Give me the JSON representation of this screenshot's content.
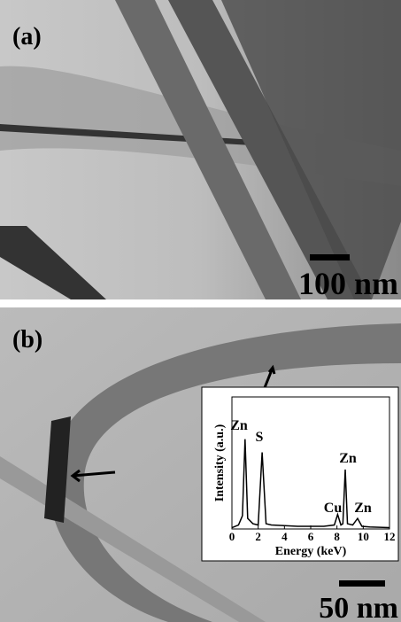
{
  "panels": [
    {
      "label": "(a)",
      "scale_bar": "100 nm"
    },
    {
      "label": "(b)",
      "scale_bar": "50 nm"
    }
  ],
  "chart_data": {
    "type": "line",
    "xlabel": "Energy (keV)",
    "ylabel": "Intensity (a.u.)",
    "x": [
      0,
      0.5,
      0.8,
      1.0,
      1.2,
      1.6,
      2.0,
      2.3,
      2.6,
      3,
      4,
      5,
      6,
      7,
      7.8,
      8.05,
      8.3,
      8.45,
      8.63,
      8.8,
      9.2,
      9.57,
      9.9,
      10.5,
      12
    ],
    "values": [
      1,
      3,
      10,
      68,
      8,
      4,
      3,
      58,
      4,
      3,
      2.5,
      2,
      2,
      2,
      3,
      11,
      3,
      4,
      45,
      4,
      3,
      8,
      2,
      1.5,
      1
    ],
    "color": "#000000",
    "xlim": [
      0,
      12
    ],
    "xticks": [
      0,
      2,
      4,
      6,
      8,
      10,
      12
    ],
    "ylim": [
      0,
      100
    ],
    "annotations": [
      "Zn",
      "S",
      "Zn",
      "Cu",
      "Zn"
    ]
  }
}
